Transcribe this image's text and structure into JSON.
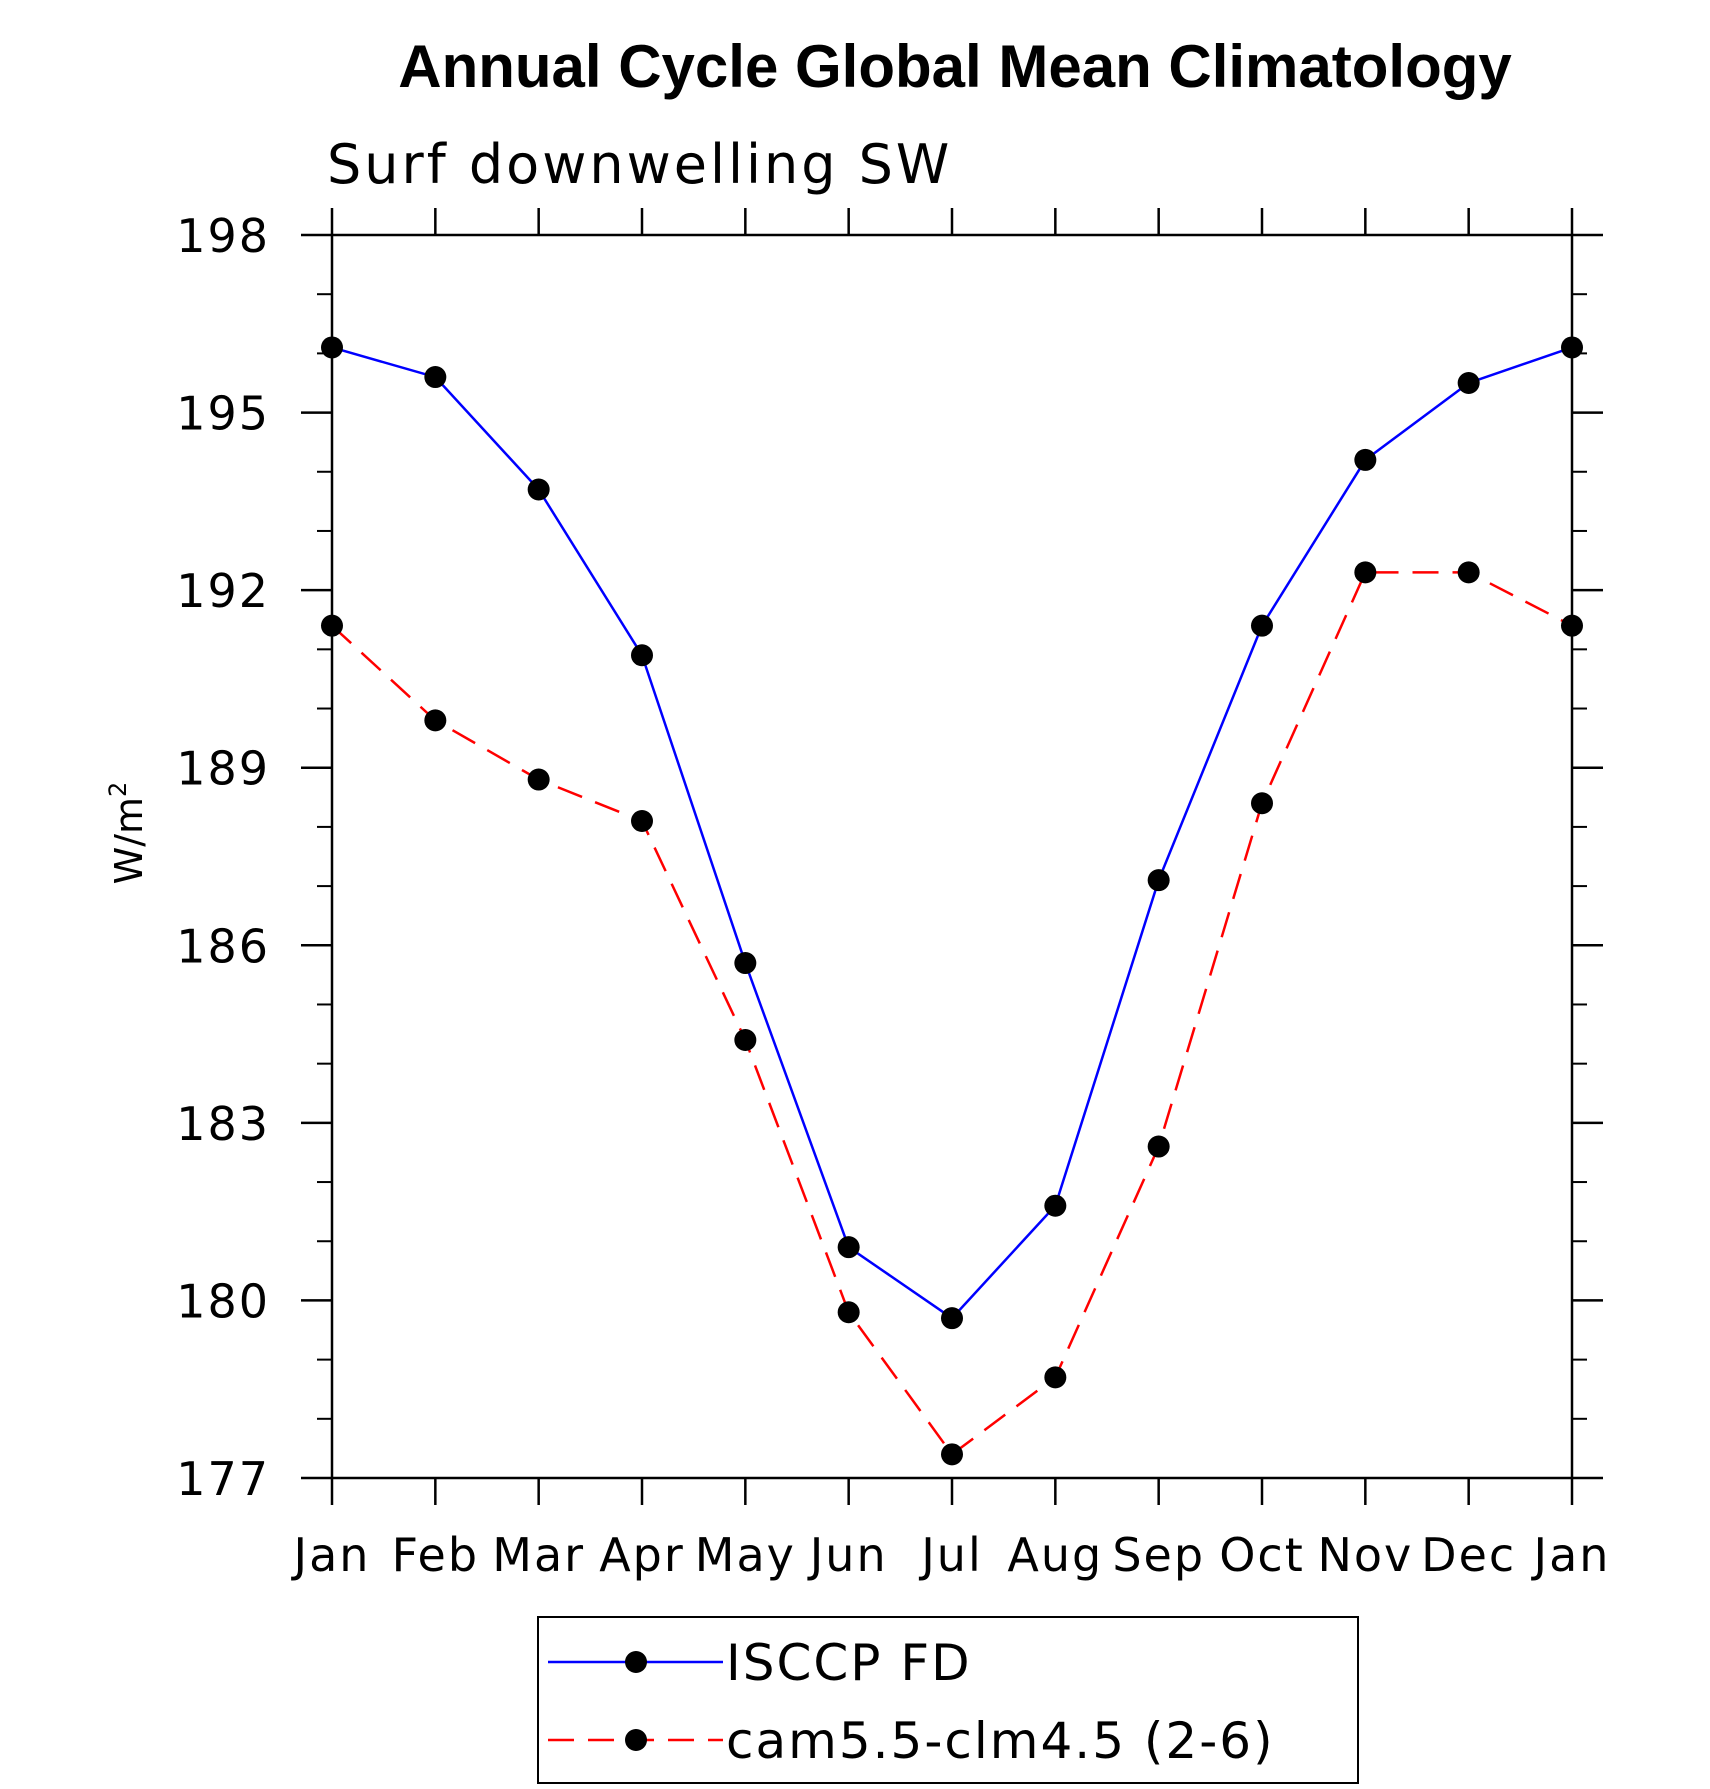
{
  "chart_data": {
    "type": "line",
    "title": "Annual Cycle Global Mean Climatology",
    "subtitle": "Surf downwelling SW",
    "ylabel": "W/m",
    "ylabel_sup": "2",
    "xlabel": "",
    "categories": [
      "Jan",
      "Feb",
      "Mar",
      "Apr",
      "May",
      "Jun",
      "Jul",
      "Aug",
      "Sep",
      "Oct",
      "Nov",
      "Dec",
      "Jan"
    ],
    "ylim": [
      177,
      198
    ],
    "yticks": [
      177,
      180,
      183,
      186,
      189,
      192,
      195,
      198
    ],
    "grid": false,
    "legend_position": "bottom",
    "series": [
      {
        "name": "ISCCP FD",
        "color": "#0000ff",
        "dash": "solid",
        "marker": "filled-circle",
        "values": [
          196.1,
          195.6,
          193.7,
          190.9,
          185.7,
          180.9,
          179.7,
          181.6,
          187.1,
          191.4,
          194.2,
          195.5,
          196.1
        ]
      },
      {
        "name": "cam5.5-clm4.5 (2-6)",
        "color": "#ff0000",
        "dash": "dashed",
        "marker": "filled-circle",
        "values": [
          191.4,
          189.8,
          188.8,
          188.1,
          184.4,
          179.8,
          177.4,
          178.7,
          182.6,
          188.4,
          192.3,
          192.3,
          191.4
        ]
      }
    ]
  }
}
